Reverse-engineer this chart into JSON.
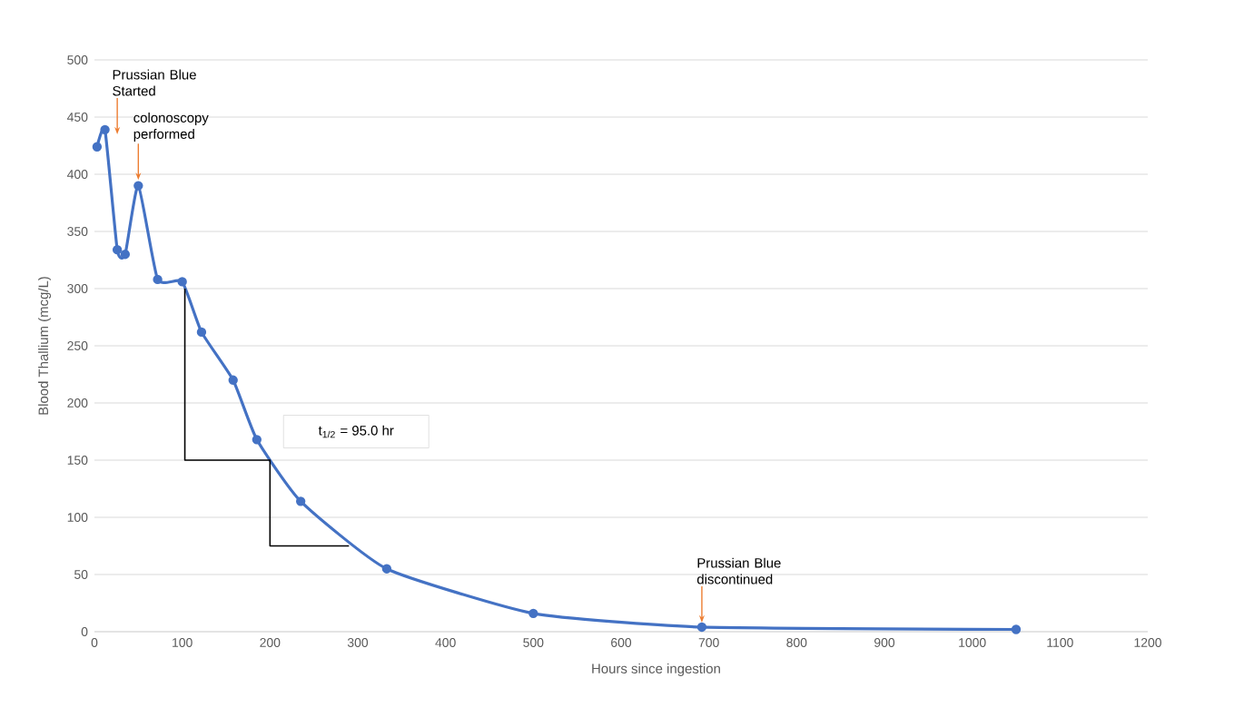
{
  "chart_data": {
    "type": "line",
    "xlabel": "Hours since ingestion",
    "ylabel": "Blood Thallium (mcg/L)",
    "x": [
      3,
      12,
      26,
      35,
      50,
      72,
      100,
      122,
      158,
      185,
      235,
      333,
      500,
      692,
      1050
    ],
    "series": [
      {
        "color": "#4472c4",
        "marker": "circle",
        "values": [
          424,
          439,
          334,
          330,
          390,
          308,
          306,
          262,
          220,
          168,
          114,
          55,
          16,
          4,
          2
        ]
      },
      {
        "color": "#000000",
        "marker": "none",
        "x": [
          103,
          103,
          200,
          200,
          290
        ],
        "values": [
          300,
          150,
          150,
          75,
          75
        ]
      }
    ],
    "xlim": [
      0,
      1200
    ],
    "ylim": [
      0,
      500
    ],
    "xticks": [
      0,
      100,
      200,
      300,
      400,
      500,
      600,
      700,
      800,
      900,
      1000,
      1100,
      1200
    ],
    "yticks": [
      0,
      50,
      100,
      150,
      200,
      250,
      300,
      350,
      400,
      450,
      500
    ],
    "grid": "y",
    "annotations": [
      {
        "text": "Prussian Blue Started",
        "x": 26,
        "y": 435
      },
      {
        "text": "colonoscopy performed",
        "x": 50,
        "y": 395
      },
      {
        "text": "Prussian Blue discontinued",
        "x": 692,
        "y": 8
      },
      "t$_{1/2}$ = 95.0 hr"
    ]
  }
}
